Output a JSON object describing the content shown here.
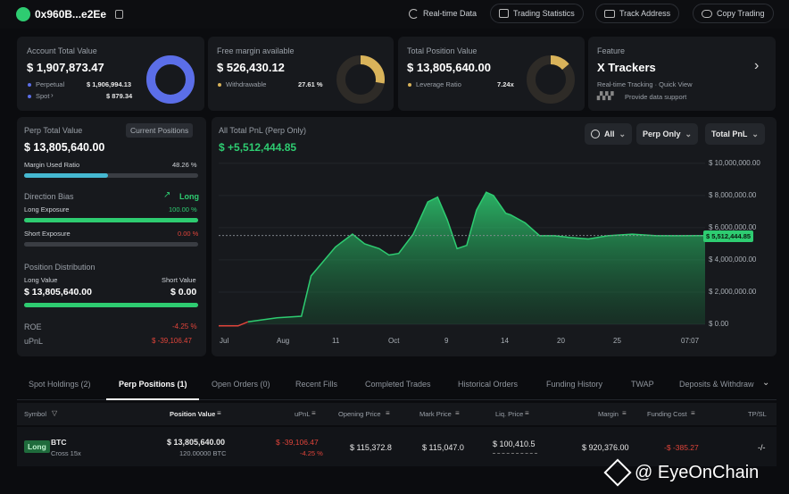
{
  "header": {
    "address": "0x960B...e2Ee",
    "realtime": "Real-time Data",
    "trading_stats": "Trading Statistics",
    "track": "Track Address",
    "copy": "Copy Trading"
  },
  "cards": {
    "account": {
      "label": "Account Total Value",
      "value": "$ 1,907,873.47",
      "perp_label": "Perpetual",
      "perp_value": "$ 1,906,994.13",
      "spot_label": "Spot",
      "spot_value": "$ 879.34",
      "perp_fraction": 0.9995
    },
    "margin": {
      "label": "Free margin available",
      "value": "$ 526,430.12",
      "sub_label": "Withdrawable",
      "sub_value": "27.61 %",
      "fraction": 0.2761
    },
    "position": {
      "label": "Total Position Value",
      "value": "$ 13,805,640.00",
      "sub_label": "Leverage Ratio",
      "sub_value": "7.24x",
      "fraction": 0.1381
    },
    "feature": {
      "label": "Feature",
      "title": "X Trackers",
      "desc": "Real-time Tracking · Quick View",
      "support": "Provide data support"
    }
  },
  "perp": {
    "label": "Perp Total Value",
    "current_btn": "Current Positions",
    "value": "$ 13,805,640.00",
    "margin_ratio_label": "Margin Used Ratio",
    "margin_ratio": "48.26 %",
    "margin_fraction": 0.4826,
    "bias_label": "Direction Bias",
    "bias_value": "Long",
    "long_exp_label": "Long Exposure",
    "long_exp": "100.00 %",
    "long_fraction": 1.0,
    "short_exp_label": "Short Exposure",
    "short_exp": "0.00 %",
    "short_fraction": 0.0,
    "dist_label": "Position Distribution",
    "long_value_label": "Long Value",
    "short_value_label": "Short Value",
    "long_value": "$ 13,805,640.00",
    "short_value": "$ 0.00",
    "roe_label": "ROE",
    "roe": "-4.25 %",
    "upnl_label": "uPnL",
    "upnl": "$ -39,106.47"
  },
  "pnl": {
    "title": "All Total PnL (Perp Only)",
    "value": "$ +5,512,444.85",
    "filter_all": "All",
    "filter_perp": "Perp Only",
    "filter_total": "Total PnL"
  },
  "chart_data": {
    "type": "area",
    "x_ticks": [
      "Jul",
      "Aug",
      "11",
      "Oct",
      "9",
      "14",
      "20",
      "25",
      "07:07"
    ],
    "y_ticks": [
      "$ 10,000,000.00",
      "$ 8,000,000.00",
      "$ 6,000,000.00",
      "$ 4,000,000.00",
      "$ 2,000,000.00",
      "$ 0.00"
    ],
    "ylim": [
      -500000,
      10600000
    ],
    "current_label": "$ 5,512,444.85",
    "current_value": 5512444.85,
    "x": [
      0,
      0.04,
      0.06,
      0.12,
      0.17,
      0.19,
      0.24,
      0.275,
      0.3,
      0.33,
      0.35,
      0.37,
      0.4,
      0.43,
      0.45,
      0.47,
      0.49,
      0.51,
      0.53,
      0.55,
      0.565,
      0.59,
      0.6,
      0.63,
      0.66,
      0.69,
      0.72,
      0.76,
      0.8,
      0.85,
      0.9,
      0.95,
      1.0
    ],
    "values": [
      -100000,
      -100000,
      150000,
      400000,
      500000,
      3000000,
      4800000,
      5600000,
      5000000,
      4700000,
      4300000,
      4400000,
      5600000,
      7600000,
      7900000,
      6500000,
      4700000,
      4900000,
      7100000,
      8200000,
      8000000,
      6900000,
      6800000,
      6300000,
      5500000,
      5500000,
      5400000,
      5300000,
      5500000,
      5600000,
      5500000,
      5500000,
      5512444
    ]
  },
  "tabs": [
    "Spot Holdings (2)",
    "Perp Positions (1)",
    "Open Orders (0)",
    "Recent Fills",
    "Completed Trades",
    "Historical Orders",
    "Funding History",
    "TWAP",
    "Deposits & Withdraw"
  ],
  "table": {
    "headers": [
      "Symbol",
      "Position Value",
      "uPnL",
      "Opening Price",
      "Mark Price",
      "Liq. Price",
      "Margin",
      "Funding Cost",
      "TP/SL"
    ],
    "row": {
      "side": "Long",
      "symbol": "BTC",
      "cross": "Cross 15x",
      "value": "$ 13,805,640.00",
      "size": "120.00000 BTC",
      "upnl": "$ -39,106.47",
      "upnl_pct": "-4.25 %",
      "open": "$ 115,372.8",
      "mark": "$ 115,047.0",
      "liq": "$ 100,410.5",
      "margin": "$ 920,376.00",
      "funding": "-$ -385.27",
      "tpsl": "-/-"
    }
  },
  "watermark": "@ EyeOnChain",
  "colors": {
    "green": "#2ecc71",
    "red": "#e0443a",
    "blue": "#5b6ee8",
    "gold": "#d9b35a",
    "teal": "#45b8d1"
  }
}
